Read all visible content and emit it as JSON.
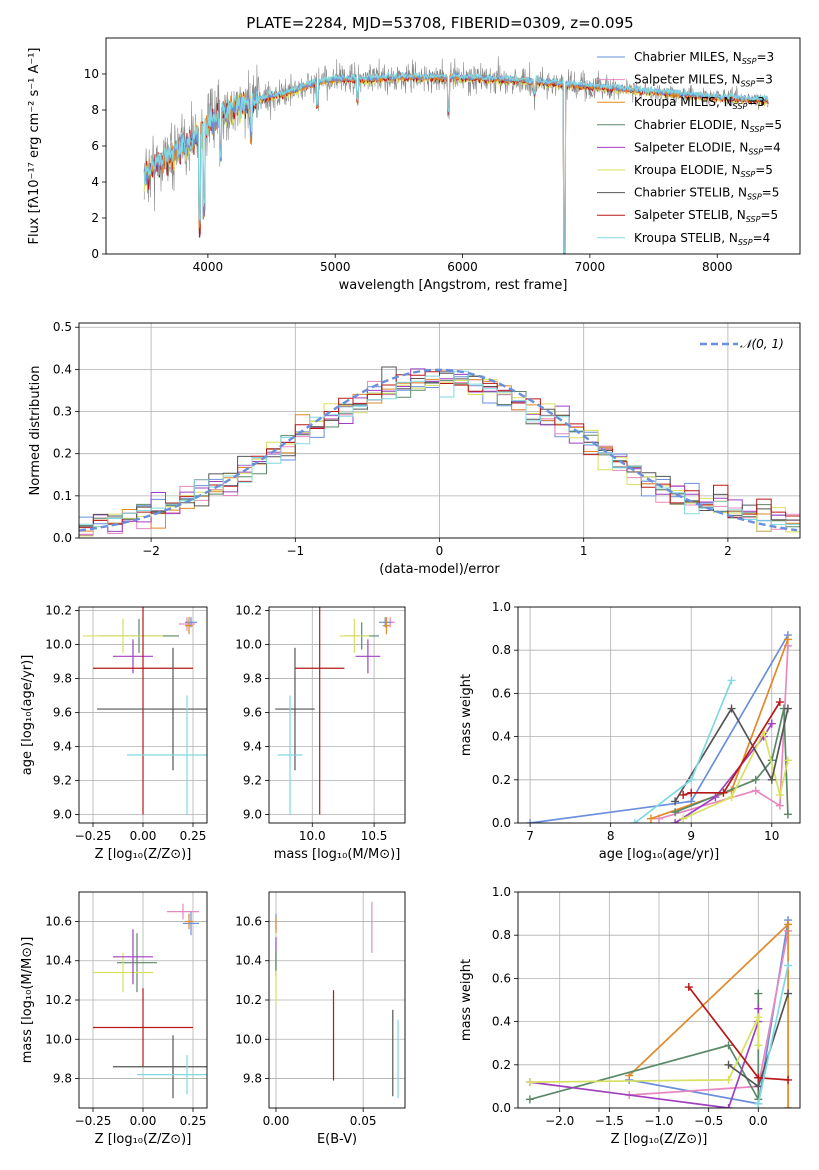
{
  "title": "PLATE=2284, MJD=53708, FIBERID=0309, z=0.095",
  "colors": {
    "chabrier_miles": "#6a8fdc",
    "salpeter_miles": "#e888c0",
    "kroupa_miles": "#e08a28",
    "chabrier_elodie": "#5a8868",
    "salpeter_elodie": "#a040c0",
    "kroupa_elodie": "#d8e060",
    "chabrier_stelib": "#555555",
    "salpeter_stelib": "#b81818",
    "kroupa_stelib": "#80d8e0",
    "gauss": "#6a8fdc",
    "grid": "#b0b0b0"
  },
  "chart_data": [
    {
      "id": "spectrum",
      "type": "line",
      "xlabel": "wavelength [Angstrom, rest frame]",
      "ylabel": "Flux [fλ10⁻¹⁷ erg cm⁻² s⁻¹ A⁻¹]",
      "xlim": [
        3200,
        8650
      ],
      "ylim": [
        0,
        12
      ],
      "xticks": [
        "4000",
        "5000",
        "6000",
        "7000",
        "8000"
      ],
      "yticks": [
        "0",
        "2",
        "4",
        "6",
        "8",
        "10"
      ],
      "legend_position": "right",
      "legend": [
        {
          "label": "Chabrier MILES, N",
          "sub": "SSP",
          "tail": "=3",
          "color_key": "chabrier_miles"
        },
        {
          "label": "Salpeter MILES, N",
          "sub": "SSP",
          "tail": "=3",
          "color_key": "salpeter_miles"
        },
        {
          "label": "Kroupa MILES, N",
          "sub": "SSP",
          "tail": "=3",
          "color_key": "kroupa_miles"
        },
        {
          "label": "Chabrier ELODIE, N",
          "sub": "SSP",
          "tail": "=5",
          "color_key": "chabrier_elodie"
        },
        {
          "label": "Salpeter ELODIE, N",
          "sub": "SSP",
          "tail": "=4",
          "color_key": "salpeter_elodie"
        },
        {
          "label": "Kroupa ELODIE, N",
          "sub": "SSP",
          "tail": "=5",
          "color_key": "kroupa_elodie"
        },
        {
          "label": "Chabrier STELIB, N",
          "sub": "SSP",
          "tail": "=5",
          "color_key": "chabrier_stelib"
        },
        {
          "label": "Salpeter STELIB, N",
          "sub": "SSP",
          "tail": "=5",
          "color_key": "salpeter_stelib"
        },
        {
          "label": "Kroupa STELIB, N",
          "sub": "SSP",
          "tail": "=4",
          "color_key": "kroupa_stelib"
        }
      ],
      "continuum": {
        "x": [
          3500,
          3600,
          3700,
          3800,
          3900,
          4000,
          4100,
          4200,
          4400,
          4600,
          4800,
          5000,
          5200,
          5500,
          6000,
          6500,
          7000,
          7500,
          8000,
          8400
        ],
        "y": [
          4.3,
          5.0,
          5.5,
          5.9,
          6.5,
          7.2,
          7.7,
          8.1,
          8.6,
          8.9,
          9.4,
          9.7,
          9.7,
          9.8,
          9.8,
          9.6,
          9.3,
          9.0,
          8.7,
          8.5
        ]
      },
      "dips": [
        {
          "x": 3934,
          "y": 1.8
        },
        {
          "x": 3968,
          "y": 2.5
        },
        {
          "x": 4101,
          "y": 5.5
        },
        {
          "x": 4340,
          "y": 6.8
        },
        {
          "x": 4861,
          "y": 8.2
        },
        {
          "x": 5175,
          "y": 8.5
        },
        {
          "x": 5890,
          "y": 7.9
        },
        {
          "x": 6563,
          "y": 8.9
        },
        {
          "x": 6800,
          "y": 0.0
        }
      ],
      "noise_amplitude": 1.8,
      "noise_x_range": [
        3500,
        8400
      ]
    },
    {
      "id": "residuals",
      "type": "step",
      "xlabel": "(data-model)/error",
      "ylabel": "Normed distribution",
      "xlim": [
        -2.5,
        2.5
      ],
      "ylim": [
        0,
        0.51
      ],
      "xticks": [
        "−2",
        "−1",
        "0",
        "1",
        "2"
      ],
      "yticks": [
        "0.0",
        "0.1",
        "0.2",
        "0.3",
        "0.4",
        "0.5"
      ],
      "legend_position": "upper right",
      "legend_label": "𝒩(0, 1)",
      "bin_width": 0.1
    },
    {
      "id": "z-age",
      "type": "errorbar",
      "xlabel": "Z [log₁₀(Z/Z⊙)]",
      "ylabel": "age  [log₁₀(age/yr)]",
      "xlim": [
        -0.32,
        0.32
      ],
      "ylim": [
        8.95,
        10.22
      ],
      "xticks": [
        "−0.25",
        "0.00",
        "0.25"
      ],
      "yticks": [
        "9.0",
        "9.2",
        "9.4",
        "9.6",
        "9.8",
        "10.0",
        "10.2"
      ],
      "points": [
        {
          "x": 0.22,
          "xerr": 0.04,
          "y": 10.12,
          "yerr": 0.04,
          "color_key": "salpeter_miles"
        },
        {
          "x": 0.24,
          "xerr": 0.03,
          "y": 10.13,
          "yerr": 0.03,
          "color_key": "chabrier_miles"
        },
        {
          "x": 0.23,
          "xerr": 0.02,
          "y": 10.11,
          "yerr": 0.05,
          "color_key": "kroupa_miles"
        },
        {
          "x": -0.02,
          "xerr": 0.2,
          "y": 10.05,
          "yerr": 0.1,
          "color_key": "chabrier_elodie"
        },
        {
          "x": -0.1,
          "xerr": 0.2,
          "y": 10.05,
          "yerr": 0.1,
          "color_key": "kroupa_elodie"
        },
        {
          "x": -0.05,
          "xerr": 0.1,
          "y": 9.93,
          "yerr": 0.1,
          "color_key": "salpeter_elodie"
        },
        {
          "x": 0.0,
          "xerr": 0.25,
          "y": 9.86,
          "yerr": 0.86,
          "color_key": "salpeter_stelib"
        },
        {
          "x": 0.15,
          "xerr": 0.38,
          "y": 9.62,
          "yerr": 0.36,
          "color_key": "chabrier_stelib"
        },
        {
          "x": 0.22,
          "xerr": 0.3,
          "y": 9.35,
          "yerr": 0.35,
          "color_key": "kroupa_stelib"
        }
      ]
    },
    {
      "id": "mass-age",
      "type": "errorbar",
      "xlabel": "mass [log₁₀(M/M⊙)]",
      "ylabel": "",
      "xlim": [
        9.65,
        10.75
      ],
      "ylim": [
        8.95,
        10.22
      ],
      "xticks": [
        "10.0",
        "10.5"
      ],
      "yticks": [
        "9.0",
        "9.2",
        "9.4",
        "9.6",
        "9.8",
        "10.0",
        "10.2"
      ],
      "points": [
        {
          "x": 10.63,
          "xerr": 0.04,
          "y": 10.13,
          "yerr": 0.03,
          "color_key": "salpeter_miles"
        },
        {
          "x": 10.59,
          "xerr": 0.05,
          "y": 10.13,
          "yerr": 0.03,
          "color_key": "chabrier_miles"
        },
        {
          "x": 10.6,
          "xerr": 0.03,
          "y": 10.11,
          "yerr": 0.05,
          "color_key": "kroupa_miles"
        },
        {
          "x": 10.4,
          "xerr": 0.14,
          "y": 10.05,
          "yerr": 0.08,
          "color_key": "chabrier_elodie"
        },
        {
          "x": 10.34,
          "xerr": 0.12,
          "y": 10.05,
          "yerr": 0.1,
          "color_key": "kroupa_elodie"
        },
        {
          "x": 10.45,
          "xerr": 0.1,
          "y": 9.93,
          "yerr": 0.1,
          "color_key": "salpeter_elodie"
        },
        {
          "x": 10.06,
          "xerr": 0.2,
          "y": 9.86,
          "yerr": 0.86,
          "color_key": "salpeter_stelib"
        },
        {
          "x": 9.86,
          "xerr": 0.16,
          "y": 9.62,
          "yerr": 0.36,
          "color_key": "chabrier_stelib"
        },
        {
          "x": 9.82,
          "xerr": 0.1,
          "y": 9.35,
          "yerr": 0.35,
          "color_key": "kroupa_stelib"
        }
      ]
    },
    {
      "id": "age-weight",
      "type": "line",
      "xlabel": "age  [log₁₀(age/yr)]",
      "ylabel": "mass weight",
      "xlim": [
        6.85,
        10.35
      ],
      "ylim": [
        0,
        1.0
      ],
      "xticks": [
        "7",
        "8",
        "9",
        "10"
      ],
      "yticks": [
        "0.0",
        "0.2",
        "0.4",
        "0.6",
        "0.8",
        "1.0"
      ],
      "series": [
        {
          "color_key": "chabrier_miles",
          "x": [
            7.0,
            9.0,
            10.2
          ],
          "y": [
            0.0,
            0.1,
            0.87
          ]
        },
        {
          "color_key": "salpeter_miles",
          "x": [
            8.6,
            9.8,
            10.1,
            10.2
          ],
          "y": [
            0.02,
            0.15,
            0.08,
            0.82
          ]
        },
        {
          "color_key": "kroupa_miles",
          "x": [
            8.5,
            9.5,
            10.2
          ],
          "y": [
            0.02,
            0.15,
            0.85
          ]
        },
        {
          "color_key": "chabrier_elodie",
          "x": [
            8.8,
            9.8,
            10.0,
            10.15,
            10.2
          ],
          "y": [
            0.05,
            0.2,
            0.29,
            0.53,
            0.04
          ]
        },
        {
          "color_key": "salpeter_elodie",
          "x": [
            8.8,
            9.3,
            9.9,
            10.0
          ],
          "y": [
            0.0,
            0.12,
            0.4,
            0.46
          ]
        },
        {
          "color_key": "kroupa_elodie",
          "x": [
            8.9,
            9.5,
            9.9,
            10.1,
            10.2
          ],
          "y": [
            0.02,
            0.12,
            0.42,
            0.13,
            0.29
          ]
        },
        {
          "color_key": "chabrier_stelib",
          "x": [
            8.8,
            9.5,
            10.0,
            10.2
          ],
          "y": [
            0.1,
            0.53,
            0.2,
            0.53
          ]
        },
        {
          "color_key": "salpeter_stelib",
          "x": [
            8.9,
            9.0,
            9.4,
            10.1
          ],
          "y": [
            0.13,
            0.14,
            0.14,
            0.56
          ]
        },
        {
          "color_key": "kroupa_stelib",
          "x": [
            8.3,
            9.0,
            9.5
          ],
          "y": [
            0.0,
            0.2,
            0.66
          ]
        }
      ]
    },
    {
      "id": "z-mass",
      "type": "errorbar",
      "xlabel": "Z [log₁₀(Z/Z⊙)]",
      "ylabel": "mass [log₁₀(M/M⊙)]",
      "xlim": [
        -0.32,
        0.32
      ],
      "ylim": [
        9.65,
        10.75
      ],
      "xticks": [
        "−0.25",
        "0.00",
        "0.25"
      ],
      "yticks": [
        "9.8",
        "10.0",
        "10.2",
        "10.4",
        "10.6"
      ],
      "points": [
        {
          "x": 0.2,
          "xerr": 0.08,
          "y": 10.65,
          "yerr": 0.04,
          "color_key": "salpeter_miles"
        },
        {
          "x": 0.24,
          "xerr": 0.04,
          "y": 10.59,
          "yerr": 0.06,
          "color_key": "chabrier_miles"
        },
        {
          "x": 0.23,
          "xerr": 0.02,
          "y": 10.6,
          "yerr": 0.04,
          "color_key": "kroupa_miles"
        },
        {
          "x": -0.03,
          "xerr": 0.1,
          "y": 10.39,
          "yerr": 0.15,
          "color_key": "chabrier_elodie"
        },
        {
          "x": -0.1,
          "xerr": 0.15,
          "y": 10.34,
          "yerr": 0.1,
          "color_key": "kroupa_elodie"
        },
        {
          "x": -0.05,
          "xerr": 0.1,
          "y": 10.42,
          "yerr": 0.14,
          "color_key": "salpeter_elodie"
        },
        {
          "x": 0.0,
          "xerr": 0.25,
          "y": 10.06,
          "yerr": 0.2,
          "color_key": "salpeter_stelib"
        },
        {
          "x": 0.15,
          "xerr": 0.3,
          "y": 9.86,
          "yerr": 0.16,
          "color_key": "chabrier_stelib"
        },
        {
          "x": 0.22,
          "xerr": 0.25,
          "y": 9.82,
          "yerr": 0.1,
          "color_key": "kroupa_stelib"
        }
      ]
    },
    {
      "id": "ebv-mass",
      "type": "errorbar",
      "xlabel": "E(B-V)",
      "ylabel": "",
      "xlim": [
        -0.004,
        0.074
      ],
      "ylim": [
        9.65,
        10.75
      ],
      "xticks": [
        "0.00",
        "0.05"
      ],
      "yticks": [
        "9.8",
        "10.0",
        "10.2",
        "10.4",
        "10.6"
      ],
      "points": [
        {
          "x": 0.0,
          "xerr": 0.0,
          "y": 10.6,
          "yerr": 0.04,
          "color_key": "chabrier_miles"
        },
        {
          "x": 0.0,
          "xerr": 0.0,
          "y": 10.58,
          "yerr": 0.04,
          "color_key": "kroupa_miles"
        },
        {
          "x": 0.0,
          "xerr": 0.0,
          "y": 10.42,
          "yerr": 0.1,
          "color_key": "salpeter_elodie"
        },
        {
          "x": 0.0,
          "xerr": 0.0,
          "y": 10.3,
          "yerr": 0.12,
          "color_key": "kroupa_elodie"
        },
        {
          "x": 0.0,
          "xerr": 0.0,
          "y": 10.4,
          "yerr": 0.05,
          "color_key": "chabrier_elodie"
        },
        {
          "x": 0.055,
          "xerr": 0.0,
          "y": 10.57,
          "yerr": 0.13,
          "color_key": "salpeter_miles"
        },
        {
          "x": 0.033,
          "xerr": 0.0,
          "y": 10.02,
          "yerr": 0.23,
          "color_key": "salpeter_stelib"
        },
        {
          "x": 0.067,
          "xerr": 0.0,
          "y": 9.93,
          "yerr": 0.22,
          "color_key": "chabrier_stelib"
        },
        {
          "x": 0.07,
          "xerr": 0.0,
          "y": 9.9,
          "yerr": 0.2,
          "color_key": "kroupa_stelib"
        }
      ]
    },
    {
      "id": "z-weight",
      "type": "line",
      "xlabel": "Z [log₁₀(Z/Z⊙)]",
      "ylabel": "mass weight",
      "xlim": [
        -2.42,
        0.42
      ],
      "ylim": [
        0,
        1.0
      ],
      "xticks": [
        "−2.0",
        "−1.5",
        "−1.0",
        "−0.5",
        "0.0"
      ],
      "yticks": [
        "0.0",
        "0.2",
        "0.4",
        "0.6",
        "0.8",
        "1.0"
      ],
      "series": [
        {
          "color_key": "chabrier_miles",
          "x": [
            -1.3,
            0.0,
            0.3
          ],
          "y": [
            0.13,
            0.02,
            0.87
          ]
        },
        {
          "color_key": "salpeter_miles",
          "x": [
            -1.3,
            0.0,
            0.3
          ],
          "y": [
            0.06,
            0.1,
            0.82
          ]
        },
        {
          "color_key": "kroupa_miles",
          "x": [
            -1.3,
            0.3,
            0.3
          ],
          "y": [
            0.15,
            0.85,
            0.0
          ]
        },
        {
          "color_key": "chabrier_elodie",
          "x": [
            -2.3,
            -0.3,
            0.0,
            0.0
          ],
          "y": [
            0.04,
            0.29,
            0.04,
            0.53
          ]
        },
        {
          "color_key": "salpeter_elodie",
          "x": [
            -2.3,
            -0.3,
            0.0,
            0.0
          ],
          "y": [
            0.12,
            0.0,
            0.4,
            0.46
          ]
        },
        {
          "color_key": "kroupa_elodie",
          "x": [
            -2.3,
            -0.3,
            0.0,
            0.0
          ],
          "y": [
            0.12,
            0.13,
            0.42,
            0.29
          ]
        },
        {
          "color_key": "chabrier_stelib",
          "x": [
            -0.3,
            0.0,
            0.3
          ],
          "y": [
            0.2,
            0.1,
            0.53
          ]
        },
        {
          "color_key": "salpeter_stelib",
          "x": [
            -0.7,
            0.0,
            0.3
          ],
          "y": [
            0.56,
            0.14,
            0.13
          ]
        },
        {
          "color_key": "kroupa_stelib",
          "x": [
            0.0,
            0.3
          ],
          "y": [
            0.02,
            0.66
          ]
        }
      ]
    }
  ]
}
